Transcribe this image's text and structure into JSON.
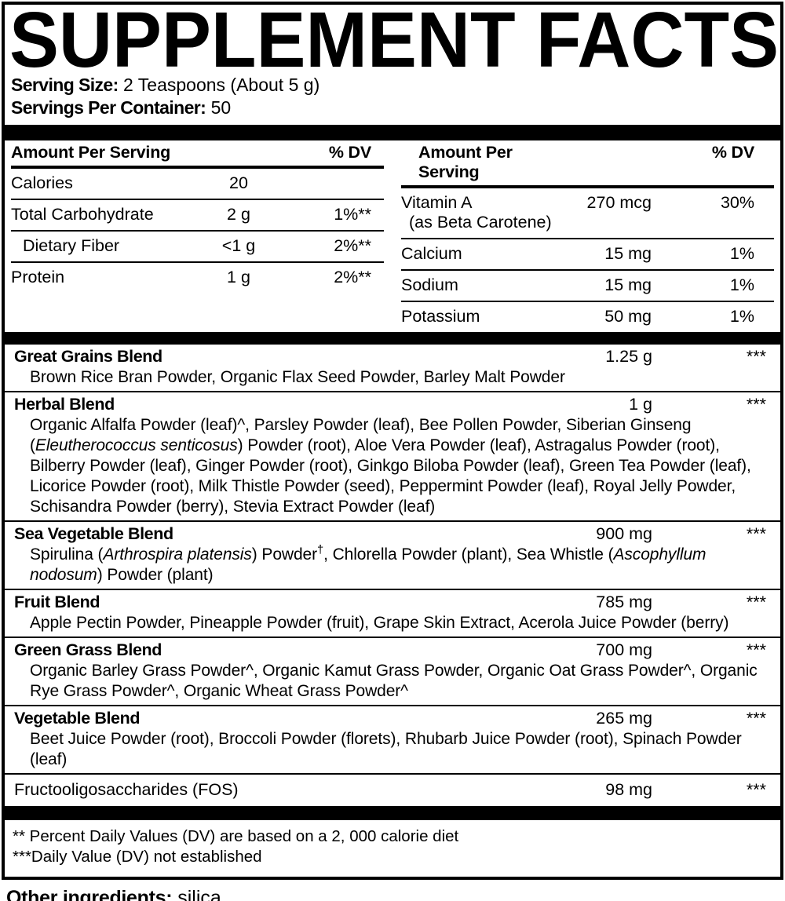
{
  "title": "SUPPLEMENT FACTS",
  "serving": {
    "size_label": "Serving Size:",
    "size_value": "2 Teaspoons (About 5 g)",
    "per_container_label": "Servings Per Container:",
    "per_container_value": "50"
  },
  "table_headers": {
    "amount": "Amount Per Serving",
    "dv": "% DV"
  },
  "left_table": {
    "rows": [
      {
        "label": "Calories",
        "amount": "20",
        "dv": ""
      },
      {
        "label": "Total Carbohydrate",
        "amount": "2 g",
        "dv": "1%**"
      },
      {
        "label": "Dietary Fiber",
        "amount": "<1 g",
        "dv": "2%**"
      },
      {
        "label": "Protein",
        "amount": "1 g",
        "dv": "2%**"
      }
    ]
  },
  "right_table": {
    "rows": [
      {
        "label": "Vitamin A",
        "sublabel": "(as Beta Carotene)",
        "amount": "270 mcg",
        "dv": "30%"
      },
      {
        "label": "Calcium",
        "sublabel": "",
        "amount": "15 mg",
        "dv": "1%"
      },
      {
        "label": "Sodium",
        "sublabel": "",
        "amount": "15 mg",
        "dv": "1%"
      },
      {
        "label": "Potassium",
        "sublabel": "",
        "amount": "50 mg",
        "dv": "1%"
      }
    ]
  },
  "blends": [
    {
      "name": "Great Grains Blend",
      "amount": "1.25 g",
      "dv": "***",
      "desc": [
        {
          "t": "Brown Rice Bran Powder, Organic Flax Seed Powder, Barley Malt Powder"
        }
      ]
    },
    {
      "name": "Herbal Blend",
      "amount": "1 g",
      "dv": "***",
      "desc": [
        {
          "t": "Organic Alfalfa Powder (leaf)^, Parsley Powder (leaf), Bee Pollen Powder, Siberian Ginseng ("
        },
        {
          "t": "Eleutherococcus senticosus",
          "i": true
        },
        {
          "t": ") Powder (root), Aloe Vera Powder (leaf), Astragalus Powder (root), Bilberry Powder (leaf), Ginger Powder (root), Ginkgo Biloba Powder (leaf), Green Tea Powder (leaf), Licorice Powder (root), Milk Thistle Powder (seed), Peppermint Powder (leaf), Royal Jelly Powder, Schisandra Powder (berry), Stevia Extract Powder (leaf)"
        }
      ]
    },
    {
      "name": "Sea Vegetable Blend",
      "amount": "900 mg",
      "dv": "***",
      "desc": [
        {
          "t": "Spirulina ("
        },
        {
          "t": "Arthrospira platensis",
          "i": true
        },
        {
          "t": ") Powder"
        },
        {
          "t": "†",
          "sup": true
        },
        {
          "t": ", Chlorella Powder (plant), Sea Whistle ("
        },
        {
          "t": "Ascophyllum nodosum",
          "i": true
        },
        {
          "t": ") Powder (plant)"
        }
      ]
    },
    {
      "name": "Fruit Blend",
      "amount": "785 mg",
      "dv": "***",
      "desc": [
        {
          "t": "Apple Pectin Powder, Pineapple Powder (fruit), Grape Skin Extract, Acerola Juice Powder (berry)"
        }
      ]
    },
    {
      "name": "Green Grass Blend",
      "amount": "700 mg",
      "dv": "***",
      "desc": [
        {
          "t": "Organic Barley Grass Powder^, Organic Kamut Grass Powder, Organic Oat Grass Powder^, Organic Rye Grass Powder^, Organic Wheat Grass Powder^"
        }
      ]
    },
    {
      "name": "Vegetable Blend",
      "amount": "265 mg",
      "dv": "***",
      "desc": [
        {
          "t": "Beet Juice Powder (root), Broccoli Powder (florets), Rhubarb Juice Powder (root), Spinach Powder (leaf)"
        }
      ]
    },
    {
      "name": "Fructooligosaccharides (FOS)",
      "amount": "98 mg",
      "dv": "***",
      "desc": []
    }
  ],
  "footnotes": [
    "** Percent Daily Values (DV) are based on a 2, 000 calorie diet",
    "***Daily Value (DV) not established"
  ],
  "other_ingredients": {
    "label": "Other ingredients:",
    "value": "silica."
  },
  "colors": {
    "text": "#000000",
    "background": "#ffffff"
  }
}
